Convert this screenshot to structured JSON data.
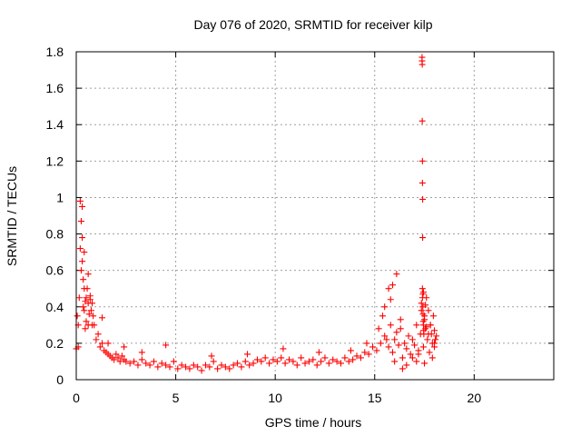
{
  "chart_data": {
    "type": "scatter",
    "title": "Day 076 of 2020, SRMTID for receiver kilp",
    "xlabel": "GPS time / hours",
    "ylabel": "SRMTID / TECUs",
    "xlim": [
      0,
      24
    ],
    "ylim": [
      0,
      1.8
    ],
    "x_ticks": [
      "0",
      "5",
      "10",
      "15",
      "20"
    ],
    "y_ticks": [
      "0",
      "0.2",
      "0.4",
      "0.6",
      "0.8",
      "1",
      "1.2",
      "1.4",
      "1.6",
      "1.8"
    ],
    "grid": true,
    "marker": "+",
    "series": [
      {
        "name": "SRMTID",
        "color": "#ff0000",
        "x": [
          0.0,
          0.05,
          0.1,
          0.1,
          0.15,
          0.2,
          0.2,
          0.25,
          0.25,
          0.3,
          0.3,
          0.3,
          0.35,
          0.35,
          0.4,
          0.4,
          0.4,
          0.45,
          0.45,
          0.5,
          0.5,
          0.55,
          0.6,
          0.6,
          0.65,
          0.7,
          0.75,
          0.8,
          0.85,
          0.9,
          1.0,
          1.1,
          1.2,
          1.3,
          1.4,
          1.5,
          1.6,
          1.7,
          1.8,
          1.9,
          2.0,
          2.1,
          2.2,
          2.3,
          2.4,
          2.5,
          2.7,
          2.9,
          3.1,
          3.3,
          3.5,
          3.7,
          3.9,
          4.1,
          4.3,
          4.5,
          4.7,
          4.9,
          5.1,
          5.3,
          5.5,
          5.7,
          5.9,
          6.1,
          6.3,
          6.5,
          6.7,
          6.9,
          7.1,
          7.3,
          7.5,
          7.7,
          7.9,
          8.1,
          8.3,
          8.5,
          8.7,
          8.9,
          9.1,
          9.3,
          9.5,
          9.7,
          9.9,
          10.1,
          10.3,
          10.5,
          10.7,
          10.9,
          11.1,
          11.3,
          11.5,
          11.7,
          11.9,
          12.1,
          12.3,
          12.5,
          12.7,
          12.9,
          13.1,
          13.3,
          13.5,
          13.7,
          13.9,
          14.1,
          14.3,
          14.5,
          14.7,
          14.9,
          15.1,
          15.3,
          15.5,
          15.7,
          15.8,
          15.9,
          16.0,
          16.1,
          16.2,
          16.3,
          16.4,
          16.5,
          16.6,
          16.7,
          16.8,
          16.9,
          17.0,
          17.1,
          17.2,
          17.3,
          17.35,
          17.4,
          17.45,
          17.5,
          17.55,
          17.6,
          17.65,
          17.7,
          17.75,
          17.8,
          17.85,
          17.9,
          17.95,
          18.0,
          18.0,
          18.05,
          17.35,
          17.4,
          17.45,
          17.5,
          17.55,
          17.6,
          17.38,
          17.38,
          17.39,
          17.39,
          17.4,
          17.4,
          17.41,
          17.41,
          17.42,
          17.42,
          17.43,
          17.44,
          17.45,
          17.46,
          17.47,
          15.9,
          16.1,
          16.3,
          15.7,
          0.7,
          0.6,
          1.3,
          0.8,
          1.6,
          2.4,
          3.3,
          4.5,
          6.8,
          8.6,
          10.4,
          12.2,
          13.8,
          14.6,
          15.2,
          15.4,
          15.6,
          15.5,
          15.8,
          16.0,
          16.4,
          16.6,
          16.9,
          17.1,
          17.2,
          17.5,
          17.7,
          17.8,
          17.9,
          18.0,
          18.1
        ],
        "y": [
          0.17,
          0.35,
          0.3,
          0.18,
          0.45,
          0.98,
          0.72,
          0.87,
          0.6,
          0.95,
          0.78,
          0.65,
          0.55,
          0.4,
          0.7,
          0.5,
          0.38,
          0.43,
          0.28,
          0.45,
          0.32,
          0.5,
          0.42,
          0.3,
          0.36,
          0.44,
          0.38,
          0.42,
          0.35,
          0.3,
          0.22,
          0.25,
          0.18,
          0.2,
          0.16,
          0.15,
          0.14,
          0.13,
          0.12,
          0.11,
          0.14,
          0.12,
          0.1,
          0.13,
          0.11,
          0.1,
          0.09,
          0.1,
          0.08,
          0.11,
          0.09,
          0.08,
          0.1,
          0.07,
          0.09,
          0.08,
          0.07,
          0.1,
          0.06,
          0.08,
          0.07,
          0.06,
          0.08,
          0.07,
          0.05,
          0.08,
          0.07,
          0.1,
          0.06,
          0.08,
          0.07,
          0.06,
          0.08,
          0.09,
          0.07,
          0.1,
          0.08,
          0.09,
          0.11,
          0.1,
          0.12,
          0.09,
          0.11,
          0.1,
          0.12,
          0.09,
          0.11,
          0.1,
          0.08,
          0.12,
          0.09,
          0.1,
          0.11,
          0.08,
          0.1,
          0.12,
          0.09,
          0.11,
          0.1,
          0.09,
          0.12,
          0.1,
          0.11,
          0.13,
          0.12,
          0.15,
          0.14,
          0.18,
          0.16,
          0.2,
          0.24,
          0.18,
          0.3,
          0.15,
          0.22,
          0.26,
          0.19,
          0.28,
          0.12,
          0.2,
          0.17,
          0.24,
          0.14,
          0.22,
          0.19,
          0.3,
          0.16,
          0.25,
          0.42,
          0.5,
          0.18,
          0.35,
          0.28,
          0.45,
          0.22,
          0.38,
          0.15,
          0.3,
          0.25,
          0.2,
          0.35,
          0.27,
          0.18,
          0.22,
          0.38,
          0.45,
          0.48,
          0.33,
          0.41,
          0.29,
          1.77,
          1.75,
          1.73,
          1.42,
          1.2,
          1.08,
          0.99,
          0.78,
          0.47,
          0.4,
          0.36,
          0.32,
          0.3,
          0.27,
          0.25,
          0.52,
          0.58,
          0.33,
          0.5,
          0.46,
          0.58,
          0.34,
          0.3,
          0.2,
          0.18,
          0.15,
          0.19,
          0.13,
          0.14,
          0.17,
          0.15,
          0.16,
          0.2,
          0.28,
          0.35,
          0.22,
          0.4,
          0.44,
          0.1,
          0.06,
          0.08,
          0.12,
          0.1,
          0.14,
          0.09,
          0.25,
          0.3,
          0.12,
          0.2,
          0.24
        ]
      }
    ]
  },
  "colors": {
    "series": "#ff0000",
    "grid": "#a0a0a0",
    "axis": "#000000"
  }
}
